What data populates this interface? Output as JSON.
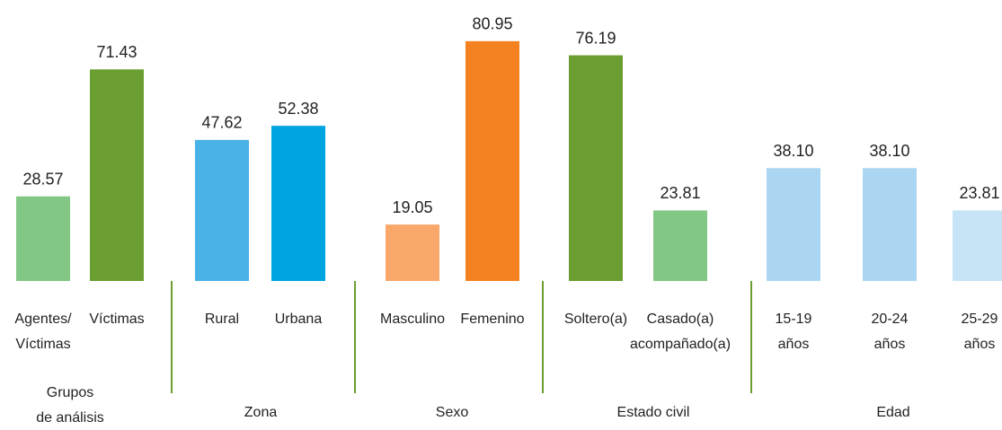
{
  "chart_data": {
    "type": "bar",
    "ylim": [
      0,
      90
    ],
    "groups": [
      {
        "name": [
          "Grupos",
          "de análisis"
        ],
        "categories": [
          [
            "Agentes/",
            "Víctimas"
          ],
          [
            "Víctimas"
          ]
        ],
        "values": [
          28.57,
          71.43
        ],
        "value_labels": [
          "28.57",
          "71.43"
        ],
        "colors": [
          "#82c785",
          "#6a9e30"
        ]
      },
      {
        "name": [
          "Zona"
        ],
        "categories": [
          [
            "Rural"
          ],
          [
            "Urbana"
          ]
        ],
        "values": [
          47.62,
          52.38
        ],
        "value_labels": [
          "47.62",
          "52.38"
        ],
        "colors": [
          "#49b2e6",
          "#00a4e0"
        ]
      },
      {
        "name": [
          "Sexo"
        ],
        "categories": [
          [
            "Masculino"
          ],
          [
            "Femenino"
          ]
        ],
        "values": [
          19.05,
          80.95
        ],
        "value_labels": [
          "19.05",
          "80.95"
        ],
        "colors": [
          "#f9a86a",
          "#f58220"
        ]
      },
      {
        "name": [
          "Estado civil"
        ],
        "categories": [
          [
            "Soltero(a)"
          ],
          [
            "Casado(a)",
            "acompañado(a)"
          ]
        ],
        "values": [
          76.19,
          23.81
        ],
        "value_labels": [
          "76.19",
          "23.81"
        ],
        "colors": [
          "#6a9e30",
          "#82c785"
        ]
      },
      {
        "name": [
          "Edad"
        ],
        "categories": [
          [
            "15-19",
            "años"
          ],
          [
            "20-24",
            "años"
          ],
          [
            "25-29",
            "años"
          ]
        ],
        "values": [
          38.1,
          38.1,
          23.81
        ],
        "value_labels": [
          "38.10",
          "38.10",
          "23.81"
        ],
        "colors": [
          "#aad6f2",
          "#aad6f2",
          "#c7e4f7"
        ]
      }
    ]
  }
}
